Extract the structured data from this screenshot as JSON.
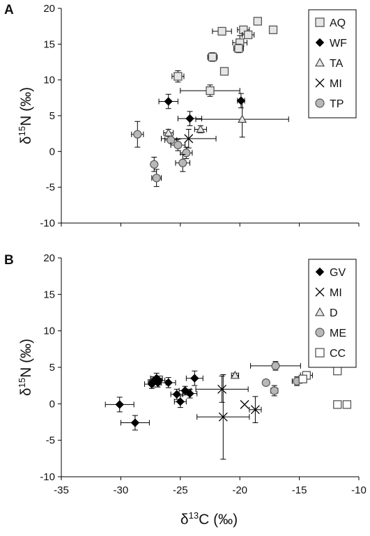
{
  "chart_data": [
    {
      "type": "scatter",
      "panel_label": "A",
      "xlim": [
        -35,
        -10
      ],
      "ylim": [
        -10,
        20
      ],
      "y_ticks": [
        "-10",
        "-5",
        "0",
        "5",
        "10",
        "15",
        "20"
      ],
      "ylabel": {
        "base": "δ",
        "sup": "15",
        "rest": "N (‰)"
      },
      "legend_position": "top-right",
      "series": [
        {
          "name": "AQ",
          "marker": "square",
          "color": "#e6e6e6",
          "stroke": "#555555",
          "points": [
            {
              "x": -21.5,
              "y": 16.8,
              "xerr": 0.8,
              "yerr": 0
            },
            {
              "x": -19.7,
              "y": 17.0,
              "xerr": 0.5,
              "yerr": 0
            },
            {
              "x": -18.5,
              "y": 18.2,
              "xerr": 0,
              "yerr": 0
            },
            {
              "x": -17.2,
              "y": 17.0,
              "xerr": 0.3,
              "yerr": 0.5
            },
            {
              "x": -20.0,
              "y": 15.2,
              "xerr": 0.6,
              "yerr": 1.0
            },
            {
              "x": -19.3,
              "y": 16.3,
              "xerr": 0.5,
              "yerr": 0
            },
            {
              "x": -20.1,
              "y": 14.4,
              "xerr": 0.4,
              "yerr": 0.6
            },
            {
              "x": -22.3,
              "y": 13.2,
              "xerr": 0.4,
              "yerr": 0.6
            },
            {
              "x": -21.3,
              "y": 11.2,
              "xerr": 0,
              "yerr": 0
            },
            {
              "x": -25.2,
              "y": 10.5,
              "xerr": 0.5,
              "yerr": 0.8
            },
            {
              "x": -22.5,
              "y": 8.5,
              "xerr": 2.5,
              "yerr": 0.8
            }
          ]
        },
        {
          "name": "WF",
          "marker": "diamond",
          "color": "#000000",
          "stroke": "#000000",
          "points": [
            {
              "x": -26.0,
              "y": 7.0,
              "xerr": 0.8,
              "yerr": 1.0
            },
            {
              "x": -19.9,
              "y": 7.1,
              "xerr": 0.3,
              "yerr": 1.0
            },
            {
              "x": -24.2,
              "y": 4.6,
              "xerr": 1.0,
              "yerr": 1.0
            }
          ]
        },
        {
          "name": "TA",
          "marker": "triangle",
          "color": "#e6e6e6",
          "stroke": "#444444",
          "points": [
            {
              "x": -26.0,
              "y": 2.6,
              "xerr": 0.4,
              "yerr": 0.5
            },
            {
              "x": -23.3,
              "y": 3.1,
              "xerr": 0.5,
              "yerr": 0.5
            },
            {
              "x": -19.8,
              "y": 4.5,
              "xerr": 3.9,
              "yerr": 2.5
            }
          ]
        },
        {
          "name": "MI",
          "marker": "cross",
          "color": "#000000",
          "stroke": "#000000",
          "points": [
            {
              "x": -24.3,
              "y": 1.8,
              "xerr": 2.3,
              "yerr": 1.3
            }
          ]
        },
        {
          "name": "TP",
          "marker": "circle",
          "color": "#b8b8b8",
          "stroke": "#555555",
          "points": [
            {
              "x": -28.6,
              "y": 2.4,
              "xerr": 0.5,
              "yerr": 1.8
            },
            {
              "x": -25.8,
              "y": 1.6,
              "xerr": 0.5,
              "yerr": 0
            },
            {
              "x": -25.2,
              "y": 0.9,
              "xerr": 0.6,
              "yerr": 0.8
            },
            {
              "x": -24.5,
              "y": -0.2,
              "xerr": 0.5,
              "yerr": 0.8
            },
            {
              "x": -27.2,
              "y": -1.8,
              "xerr": 0,
              "yerr": 1.0
            },
            {
              "x": -24.8,
              "y": -1.6,
              "xerr": 0.6,
              "yerr": 1.2
            },
            {
              "x": -27.0,
              "y": -3.7,
              "xerr": 0.4,
              "yerr": 1.2
            }
          ]
        }
      ]
    },
    {
      "type": "scatter",
      "panel_label": "B",
      "xlim": [
        -35,
        -10
      ],
      "ylim": [
        -10,
        20
      ],
      "x_ticks": [
        "-35",
        "-30",
        "-25",
        "-20",
        "-15",
        "-10"
      ],
      "y_ticks": [
        "-10",
        "-5",
        "0",
        "5",
        "10",
        "15",
        "20"
      ],
      "xlabel": {
        "base": "δ",
        "sup": "13",
        "rest": "C (‰)"
      },
      "ylabel": {
        "base": "δ",
        "sup": "15",
        "rest": "N (‰)"
      },
      "legend_position": "top-right",
      "series": [
        {
          "name": "GV",
          "marker": "diamond",
          "color": "#000000",
          "stroke": "#000000",
          "points": [
            {
              "x": -27.3,
              "y": 3.0,
              "xerr": 0.4,
              "yerr": 0.7
            },
            {
              "x": -27.0,
              "y": 3.5,
              "xerr": 0.5,
              "yerr": 0.7
            },
            {
              "x": -26.8,
              "y": 3.2,
              "xerr": 0.5,
              "yerr": 0.6
            },
            {
              "x": -27.4,
              "y": 2.7,
              "xerr": 0.6,
              "yerr": 0.6
            },
            {
              "x": -26.9,
              "y": 2.9,
              "xerr": 0.7,
              "yerr": 0.6
            },
            {
              "x": -26.0,
              "y": 2.9,
              "xerr": 0.6,
              "yerr": 0.7
            },
            {
              "x": -25.3,
              "y": 1.3,
              "xerr": 0.5,
              "yerr": 0.7
            },
            {
              "x": -24.6,
              "y": 1.8,
              "xerr": 0.5,
              "yerr": 0.6
            },
            {
              "x": -24.2,
              "y": 1.4,
              "xerr": 0.6,
              "yerr": 0.6
            },
            {
              "x": -23.8,
              "y": 3.5,
              "xerr": 0.7,
              "yerr": 1.0
            },
            {
              "x": -25.0,
              "y": 0.3,
              "xerr": 0.5,
              "yerr": 0.8
            },
            {
              "x": -30.1,
              "y": -0.1,
              "xerr": 1.2,
              "yerr": 1.0
            },
            {
              "x": -28.8,
              "y": -2.6,
              "xerr": 1.2,
              "yerr": 1.0
            }
          ]
        },
        {
          "name": "MI",
          "marker": "cross",
          "color": "#000000",
          "stroke": "#000000",
          "points": [
            {
              "x": -21.5,
              "y": 2.0,
              "xerr": 2.2,
              "yerr": 1.8
            },
            {
              "x": -21.4,
              "y": -1.8,
              "xerr": 2.2,
              "yerr": 5.8
            },
            {
              "x": -19.6,
              "y": -0.1,
              "xerr": 0,
              "yerr": 0
            },
            {
              "x": -18.7,
              "y": -0.8,
              "xerr": 0.5,
              "yerr": 1.8
            }
          ]
        },
        {
          "name": "D",
          "marker": "triangle",
          "color": "#e6e6e6",
          "stroke": "#444444",
          "points": [
            {
              "x": -20.4,
              "y": 3.9,
              "xerr": 0.3,
              "yerr": 0.3
            }
          ]
        },
        {
          "name": "ME",
          "marker": "circle",
          "color": "#b8b8b8",
          "stroke": "#555555",
          "points": [
            {
              "x": -17.0,
              "y": 5.2,
              "xerr": 2.1,
              "yerr": 0.6
            },
            {
              "x": -17.8,
              "y": 2.9,
              "xerr": 0,
              "yerr": 0
            },
            {
              "x": -17.1,
              "y": 1.8,
              "xerr": 0.3,
              "yerr": 0.7
            },
            {
              "x": -15.2,
              "y": 3.1,
              "xerr": 0.4,
              "yerr": 0.6
            }
          ]
        },
        {
          "name": "CC",
          "marker": "square",
          "color": "#ffffff",
          "stroke": "#555555",
          "points": [
            {
              "x": -14.4,
              "y": 3.9,
              "xerr": 0.5,
              "yerr": 0.4
            },
            {
              "x": -14.7,
              "y": 3.4,
              "xerr": 0.3,
              "yerr": 0.3
            },
            {
              "x": -11.8,
              "y": 4.5,
              "xerr": 0,
              "yerr": 0
            },
            {
              "x": -11.8,
              "y": -0.1,
              "xerr": 0,
              "yerr": 0
            },
            {
              "x": -11.0,
              "y": -0.1,
              "xerr": 0,
              "yerr": 0
            }
          ]
        }
      ]
    }
  ]
}
